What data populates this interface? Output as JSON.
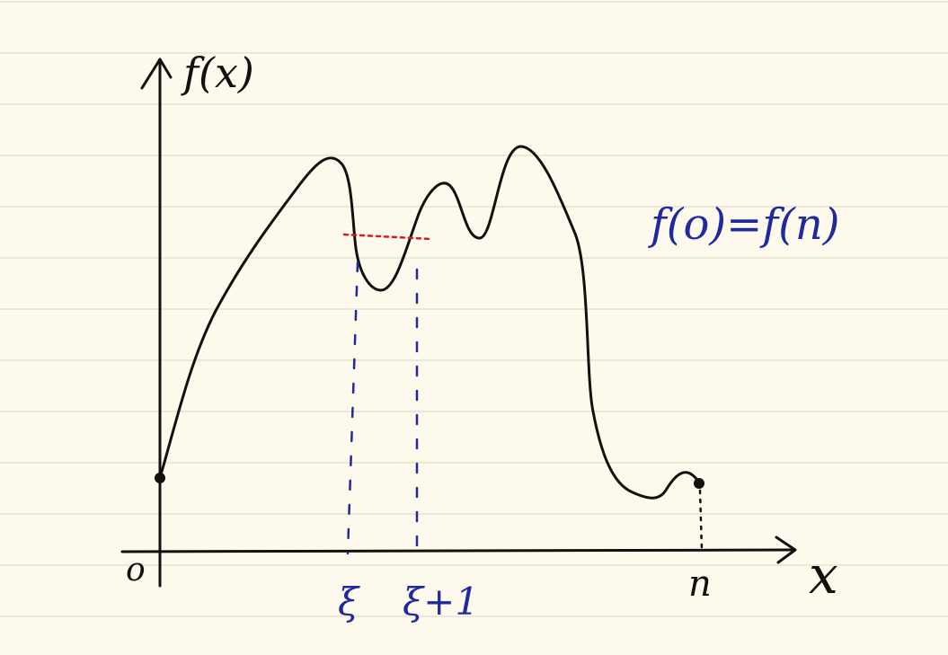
{
  "axes": {
    "y_label": "f(x)",
    "x_label": "x",
    "origin_label": "o",
    "n_label": "n"
  },
  "markers": {
    "xi_label": "ξ",
    "xi_plus_one_label": "ξ+1"
  },
  "annotation": {
    "text": "f(o)=f(n)"
  },
  "colors": {
    "paper": "#fdfaed",
    "rule_line": "#e6e1cf",
    "ink": "#111111",
    "blue_ink": "#1f2a9e",
    "red_ink": "#d11f1f"
  }
}
